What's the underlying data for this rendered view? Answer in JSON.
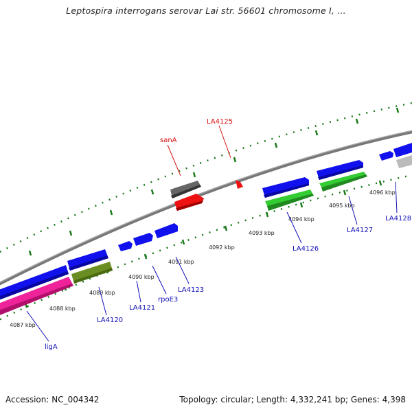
{
  "title": "Leptospira interrogans serovar Lai str. 56601 chromosome I, ...",
  "footer": {
    "accession": "Accession: NC_004342",
    "topology": "Topology: circular; Length: 4,332,241 bp; Genes: 4,398"
  },
  "scale_labels": {
    "kbp_4087": "4087 kbp",
    "kbp_4088": "4088 kbp",
    "kbp_4089": "4089 kbp",
    "kbp_4090": "4090 kbp",
    "kbp_4091": "4091 kbp",
    "kbp_4092": "4092 kbp",
    "kbp_4093": "4093 kbp",
    "kbp_4094": "4094 kbp",
    "kbp_4095": "4095 kbp",
    "kbp_4096": "4096 kbp"
  },
  "gene_labels": {
    "ligA": "ligA",
    "LA4120": "LA4120",
    "LA4121": "LA4121",
    "rpoE3": "rpoE3",
    "LA4123": "LA4123",
    "LA4126": "LA4126",
    "LA4127": "LA4127",
    "LA4128": "LA4128",
    "sanA": "sanA",
    "LA4125": "LA4125"
  },
  "colors": {
    "cds_blue": "#1111ee",
    "rna_pink": "#ee2299",
    "green": "#33cc33",
    "olive": "#6b8e23",
    "gray": "#666666",
    "light_gray": "#bbbbbb",
    "red": "#ee1111",
    "backbone": "#888888",
    "tick_green": "#1a7a1a"
  }
}
